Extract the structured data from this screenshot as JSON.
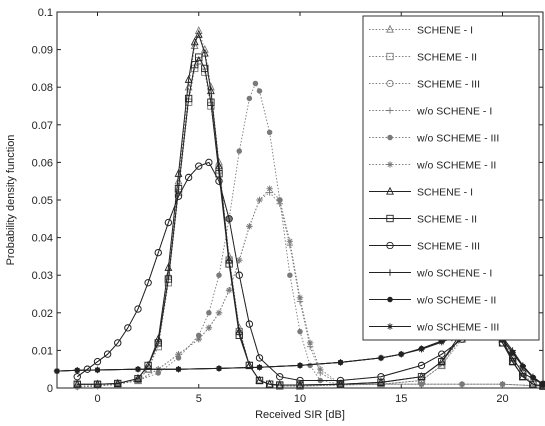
{
  "chart_data": {
    "type": "line",
    "title": "",
    "xlabel": "Received SIR [dB]",
    "ylabel": "Probability density function",
    "xlim": [
      -2,
      22
    ],
    "ylim": [
      0,
      0.1
    ],
    "xticks": [
      0,
      5,
      10,
      15,
      20
    ],
    "yticks": [
      0,
      0.01,
      0.02,
      0.03,
      0.04,
      0.05,
      0.06,
      0.07,
      0.08,
      0.09,
      0.1
    ],
    "xtick_labels": [
      "0",
      "5",
      "10",
      "15",
      "20"
    ],
    "ytick_labels": [
      "0",
      "0.01",
      "0.02",
      "0.03",
      "0.04",
      "0.05",
      "0.06",
      "0.07",
      "0.08",
      "0.09",
      "0.1"
    ],
    "grid": false,
    "legend_position": "top-right",
    "series": [
      {
        "name": "SCHENE - I",
        "marker": "triangle",
        "line": "dotted",
        "color": "#7a7a7a",
        "x": [
          -1,
          0,
          1,
          2,
          2.5,
          3,
          3.5,
          4,
          4.5,
          4.8,
          5,
          5.3,
          5.6,
          6,
          6.5,
          7,
          7.5,
          8,
          8.5,
          9,
          10,
          12,
          14,
          16,
          17,
          18,
          18.5,
          19,
          19.5,
          20,
          20.5,
          21,
          21.5,
          22
        ],
        "y": [
          0.0008,
          0.0008,
          0.001,
          0.002,
          0.005,
          0.012,
          0.03,
          0.055,
          0.08,
          0.091,
          0.095,
          0.09,
          0.08,
          0.06,
          0.035,
          0.016,
          0.006,
          0.002,
          0.001,
          0.0005,
          0.0005,
          0.0008,
          0.001,
          0.002,
          0.006,
          0.014,
          0.019,
          0.022,
          0.02,
          0.014,
          0.008,
          0.004,
          0.001,
          0.0005
        ]
      },
      {
        "name": "SCHEME - II",
        "marker": "square",
        "line": "dotted",
        "color": "#7a7a7a",
        "x": [
          -1,
          0,
          1,
          2,
          2.5,
          3,
          3.5,
          4,
          4.5,
          4.8,
          5,
          5.3,
          5.6,
          6,
          6.5,
          7,
          7.5,
          8,
          8.5,
          9,
          10,
          12,
          14,
          16,
          17,
          18,
          18.5,
          19,
          19.5,
          20,
          20.5,
          21,
          21.5,
          22
        ],
        "y": [
          0.0008,
          0.0008,
          0.001,
          0.002,
          0.005,
          0.011,
          0.028,
          0.052,
          0.076,
          0.085,
          0.087,
          0.084,
          0.075,
          0.058,
          0.034,
          0.015,
          0.006,
          0.002,
          0.001,
          0.0005,
          0.0005,
          0.0008,
          0.001,
          0.002,
          0.006,
          0.013,
          0.017,
          0.019,
          0.018,
          0.013,
          0.008,
          0.004,
          0.001,
          0.0005
        ]
      },
      {
        "name": "SCHEME - III",
        "marker": "circle",
        "line": "dotted",
        "color": "#7a7a7a",
        "x": [
          -1,
          -0.5,
          0,
          0.5,
          1,
          1.5,
          2,
          2.5,
          3,
          3.5,
          4,
          4.5,
          5,
          5.5,
          6,
          6.5,
          7,
          7.5,
          8,
          9,
          10,
          12,
          14,
          16,
          17,
          18,
          18.5,
          19,
          19.5,
          20,
          20.5,
          21,
          22
        ],
        "y": [
          0.003,
          0.005,
          0.007,
          0.009,
          0.012,
          0.016,
          0.021,
          0.028,
          0.036,
          0.044,
          0.051,
          0.056,
          0.059,
          0.06,
          0.055,
          0.045,
          0.03,
          0.017,
          0.008,
          0.003,
          0.002,
          0.002,
          0.003,
          0.006,
          0.009,
          0.013,
          0.015,
          0.016,
          0.015,
          0.012,
          0.008,
          0.004,
          0.001
        ]
      },
      {
        "name": "w/o SCHENE - I",
        "marker": "plus",
        "line": "dotted",
        "color": "#7a7a7a",
        "x": [
          -1,
          0,
          1,
          2,
          3,
          4,
          5,
          5.5,
          6,
          6.5,
          7,
          7.5,
          8,
          8.5,
          9,
          9.5,
          10,
          10.5,
          11,
          12,
          14,
          16,
          18,
          20,
          22
        ],
        "y": [
          0.0003,
          0.0005,
          0.001,
          0.002,
          0.005,
          0.009,
          0.013,
          0.016,
          0.02,
          0.026,
          0.034,
          0.043,
          0.05,
          0.052,
          0.049,
          0.038,
          0.023,
          0.011,
          0.004,
          0.001,
          0.001,
          0.001,
          0.001,
          0.001,
          0.0005
        ]
      },
      {
        "name": "w/o SCHEME - III",
        "marker": "dot",
        "line": "dotted",
        "color": "#7a7a7a",
        "x": [
          -1,
          0,
          1,
          2,
          3,
          4,
          5,
          5.5,
          6,
          6.5,
          7,
          7.5,
          7.8,
          8,
          8.5,
          9,
          9.5,
          10,
          10.5,
          11,
          12,
          14,
          16,
          18,
          20,
          22
        ],
        "y": [
          0.0003,
          0.0005,
          0.001,
          0.002,
          0.004,
          0.008,
          0.014,
          0.02,
          0.03,
          0.045,
          0.063,
          0.077,
          0.081,
          0.079,
          0.068,
          0.05,
          0.03,
          0.015,
          0.006,
          0.002,
          0.001,
          0.001,
          0.001,
          0.001,
          0.001,
          0.0005
        ]
      },
      {
        "name": "w/o SCHEME - II",
        "marker": "asterisk",
        "line": "dotted",
        "color": "#7a7a7a",
        "x": [
          -1,
          0,
          1,
          2,
          3,
          4,
          5,
          5.5,
          6,
          6.5,
          7,
          7.5,
          8,
          8.5,
          9,
          9.5,
          10,
          10.5,
          11,
          12,
          14,
          16,
          18,
          20,
          22
        ],
        "y": [
          0.0003,
          0.0005,
          0.001,
          0.002,
          0.005,
          0.009,
          0.013,
          0.016,
          0.02,
          0.026,
          0.034,
          0.043,
          0.05,
          0.053,
          0.05,
          0.039,
          0.024,
          0.012,
          0.005,
          0.001,
          0.001,
          0.001,
          0.001,
          0.001,
          0.0005
        ]
      },
      {
        "name": "SCHENE - I",
        "marker": "triangle",
        "line": "solid",
        "color": "#222222",
        "x": [
          -1,
          0,
          1,
          2,
          2.5,
          3,
          3.5,
          4,
          4.5,
          4.8,
          5,
          5.3,
          5.6,
          6,
          6.5,
          7,
          7.5,
          8,
          8.5,
          9,
          10,
          12,
          14,
          16,
          17,
          18,
          18.5,
          19,
          19.5,
          20,
          20.5,
          21,
          21.5,
          22
        ],
        "y": [
          0.001,
          0.001,
          0.0012,
          0.0025,
          0.006,
          0.013,
          0.032,
          0.057,
          0.082,
          0.092,
          0.094,
          0.089,
          0.079,
          0.059,
          0.034,
          0.015,
          0.006,
          0.002,
          0.001,
          0.0008,
          0.0008,
          0.001,
          0.0015,
          0.003,
          0.007,
          0.015,
          0.02,
          0.021,
          0.019,
          0.013,
          0.007,
          0.003,
          0.001,
          0.0005
        ]
      },
      {
        "name": "SCHEME - II",
        "marker": "square",
        "line": "solid",
        "color": "#222222",
        "x": [
          -1,
          0,
          1,
          2,
          2.5,
          3,
          3.5,
          4,
          4.5,
          4.8,
          5,
          5.3,
          5.6,
          6,
          6.5,
          7,
          7.5,
          8,
          8.5,
          9,
          10,
          12,
          14,
          16,
          17,
          18,
          18.5,
          19,
          19.5,
          20,
          20.5,
          21,
          21.5,
          22
        ],
        "y": [
          0.001,
          0.001,
          0.0012,
          0.0025,
          0.006,
          0.012,
          0.029,
          0.053,
          0.077,
          0.086,
          0.088,
          0.085,
          0.076,
          0.057,
          0.033,
          0.014,
          0.006,
          0.002,
          0.001,
          0.0008,
          0.0008,
          0.001,
          0.0015,
          0.003,
          0.007,
          0.014,
          0.018,
          0.019,
          0.017,
          0.012,
          0.007,
          0.003,
          0.001,
          0.0005
        ]
      },
      {
        "name": "SCHEME - III",
        "marker": "circle",
        "line": "solid",
        "color": "#222222",
        "x": [
          -1,
          -0.5,
          0,
          0.5,
          1,
          1.5,
          2,
          2.5,
          3,
          3.5,
          4,
          4.5,
          5,
          5.5,
          6,
          6.5,
          7,
          7.5,
          8,
          9,
          10,
          12,
          14,
          16,
          17,
          18,
          18.5,
          19,
          19.5,
          20,
          20.5,
          21,
          22
        ],
        "y": [
          0.003,
          0.005,
          0.007,
          0.009,
          0.012,
          0.016,
          0.021,
          0.028,
          0.036,
          0.044,
          0.051,
          0.056,
          0.059,
          0.06,
          0.055,
          0.045,
          0.03,
          0.017,
          0.008,
          0.003,
          0.002,
          0.002,
          0.003,
          0.006,
          0.009,
          0.013,
          0.015,
          0.016,
          0.015,
          0.012,
          0.008,
          0.004,
          0.001
        ]
      },
      {
        "name": "w/o SCHENE - I",
        "marker": "plus",
        "line": "solid",
        "color": "#222222",
        "x": [
          -2,
          -1,
          0,
          2,
          4,
          6,
          8,
          10,
          12,
          14,
          15,
          16,
          17,
          17.5,
          18,
          18.5,
          19,
          19.5,
          20,
          20.5,
          21,
          21.5,
          22
        ],
        "y": [
          0.0045,
          0.0047,
          0.0048,
          0.005,
          0.005,
          0.0052,
          0.0055,
          0.006,
          0.0068,
          0.008,
          0.009,
          0.0105,
          0.0125,
          0.0138,
          0.015,
          0.0158,
          0.0162,
          0.0155,
          0.0135,
          0.01,
          0.006,
          0.003,
          0.001
        ]
      },
      {
        "name": "w/o SCHEME - II",
        "marker": "dot",
        "line": "solid",
        "color": "#222222",
        "x": [
          -2,
          -1,
          0,
          2,
          4,
          6,
          8,
          10,
          12,
          14,
          15,
          16,
          17,
          17.5,
          18,
          18.5,
          19,
          19.5,
          20,
          20.5,
          21,
          21.5,
          22
        ],
        "y": [
          0.0045,
          0.0047,
          0.0048,
          0.005,
          0.005,
          0.0052,
          0.0055,
          0.006,
          0.0068,
          0.008,
          0.009,
          0.0105,
          0.0125,
          0.0136,
          0.0148,
          0.0155,
          0.0158,
          0.015,
          0.013,
          0.0095,
          0.0058,
          0.0028,
          0.001
        ]
      },
      {
        "name": "w/o SCHEME - III",
        "marker": "asterisk",
        "line": "solid",
        "color": "#222222",
        "x": [
          -2,
          -1,
          0,
          2,
          4,
          6,
          8,
          10,
          12,
          14,
          15,
          16,
          17,
          17.5,
          18,
          18.5,
          19,
          19.5,
          20,
          20.5,
          21,
          21.5,
          22
        ],
        "y": [
          0.0045,
          0.0047,
          0.0048,
          0.005,
          0.005,
          0.0052,
          0.0055,
          0.006,
          0.0068,
          0.008,
          0.009,
          0.0103,
          0.0122,
          0.0133,
          0.0145,
          0.0152,
          0.0155,
          0.0148,
          0.0128,
          0.0094,
          0.0057,
          0.0028,
          0.001
        ]
      }
    ]
  }
}
